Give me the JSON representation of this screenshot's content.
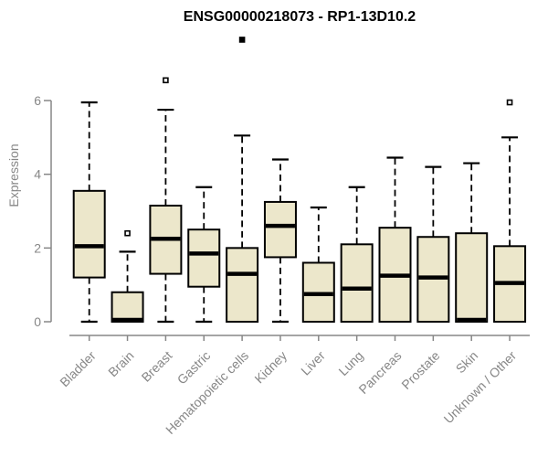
{
  "chart_data": {
    "type": "boxplot",
    "title": "ENSG00000218073 - RP1-13D10.2",
    "ylabel": "Expression",
    "xlabel": "",
    "ylim": [
      0,
      6
    ],
    "yticks": [
      0,
      2,
      4,
      6
    ],
    "grid": false,
    "legend": "none",
    "colors": {
      "box_fill": "#ece7cb",
      "box_stroke": "#000000",
      "median": "#000000",
      "axis": "#878787",
      "tick_label": "#878787",
      "title": "#000000"
    },
    "outlier_marker": "small-square",
    "categories": [
      "Bladder",
      "Brain",
      "Breast",
      "Gastric",
      "Hematopoietic cells",
      "Kidney",
      "Liver",
      "Lung",
      "Pancreas",
      "Prostate",
      "Skin",
      "Unknown / Other"
    ],
    "series": [
      {
        "name": "Bladder",
        "whisker_low": 0,
        "q1": 1.2,
        "median": 2.05,
        "q3": 3.55,
        "whisker_high": 5.95,
        "outliers": []
      },
      {
        "name": "Brain",
        "whisker_low": 0,
        "q1": 0,
        "median": 0.05,
        "q3": 0.8,
        "whisker_high": 1.9,
        "outliers": [
          {
            "value": 2.4,
            "style": "open-square"
          }
        ]
      },
      {
        "name": "Breast",
        "whisker_low": 0,
        "q1": 1.3,
        "median": 2.25,
        "q3": 3.15,
        "whisker_high": 5.75,
        "outliers": [
          {
            "value": 6.55,
            "style": "open-square"
          }
        ]
      },
      {
        "name": "Gastric",
        "whisker_low": 0,
        "q1": 0.95,
        "median": 1.85,
        "q3": 2.5,
        "whisker_high": 3.65,
        "outliers": []
      },
      {
        "name": "Hematopoietic cells",
        "whisker_low": 0,
        "q1": 0,
        "median": 1.3,
        "q3": 2.0,
        "whisker_high": 5.05,
        "outliers": [
          {
            "value": 7.65,
            "style": "filled-square"
          }
        ]
      },
      {
        "name": "Kidney",
        "whisker_low": 0,
        "q1": 1.75,
        "median": 2.6,
        "q3": 3.25,
        "whisker_high": 4.4,
        "outliers": []
      },
      {
        "name": "Liver",
        "whisker_low": 0,
        "q1": 0,
        "median": 0.75,
        "q3": 1.6,
        "whisker_high": 3.1,
        "outliers": []
      },
      {
        "name": "Lung",
        "whisker_low": 0,
        "q1": 0,
        "median": 0.9,
        "q3": 2.1,
        "whisker_high": 3.65,
        "outliers": []
      },
      {
        "name": "Pancreas",
        "whisker_low": 0,
        "q1": 0,
        "median": 1.25,
        "q3": 2.55,
        "whisker_high": 4.45,
        "outliers": []
      },
      {
        "name": "Prostate",
        "whisker_low": 0,
        "q1": 0,
        "median": 1.2,
        "q3": 2.3,
        "whisker_high": 4.2,
        "outliers": []
      },
      {
        "name": "Skin",
        "whisker_low": 0,
        "q1": 0,
        "median": 0.05,
        "q3": 2.4,
        "whisker_high": 4.3,
        "outliers": []
      },
      {
        "name": "Unknown / Other",
        "whisker_low": 0,
        "q1": 0,
        "median": 1.05,
        "q3": 2.05,
        "whisker_high": 5.0,
        "outliers": [
          {
            "value": 5.95,
            "style": "open-square"
          }
        ]
      }
    ]
  }
}
